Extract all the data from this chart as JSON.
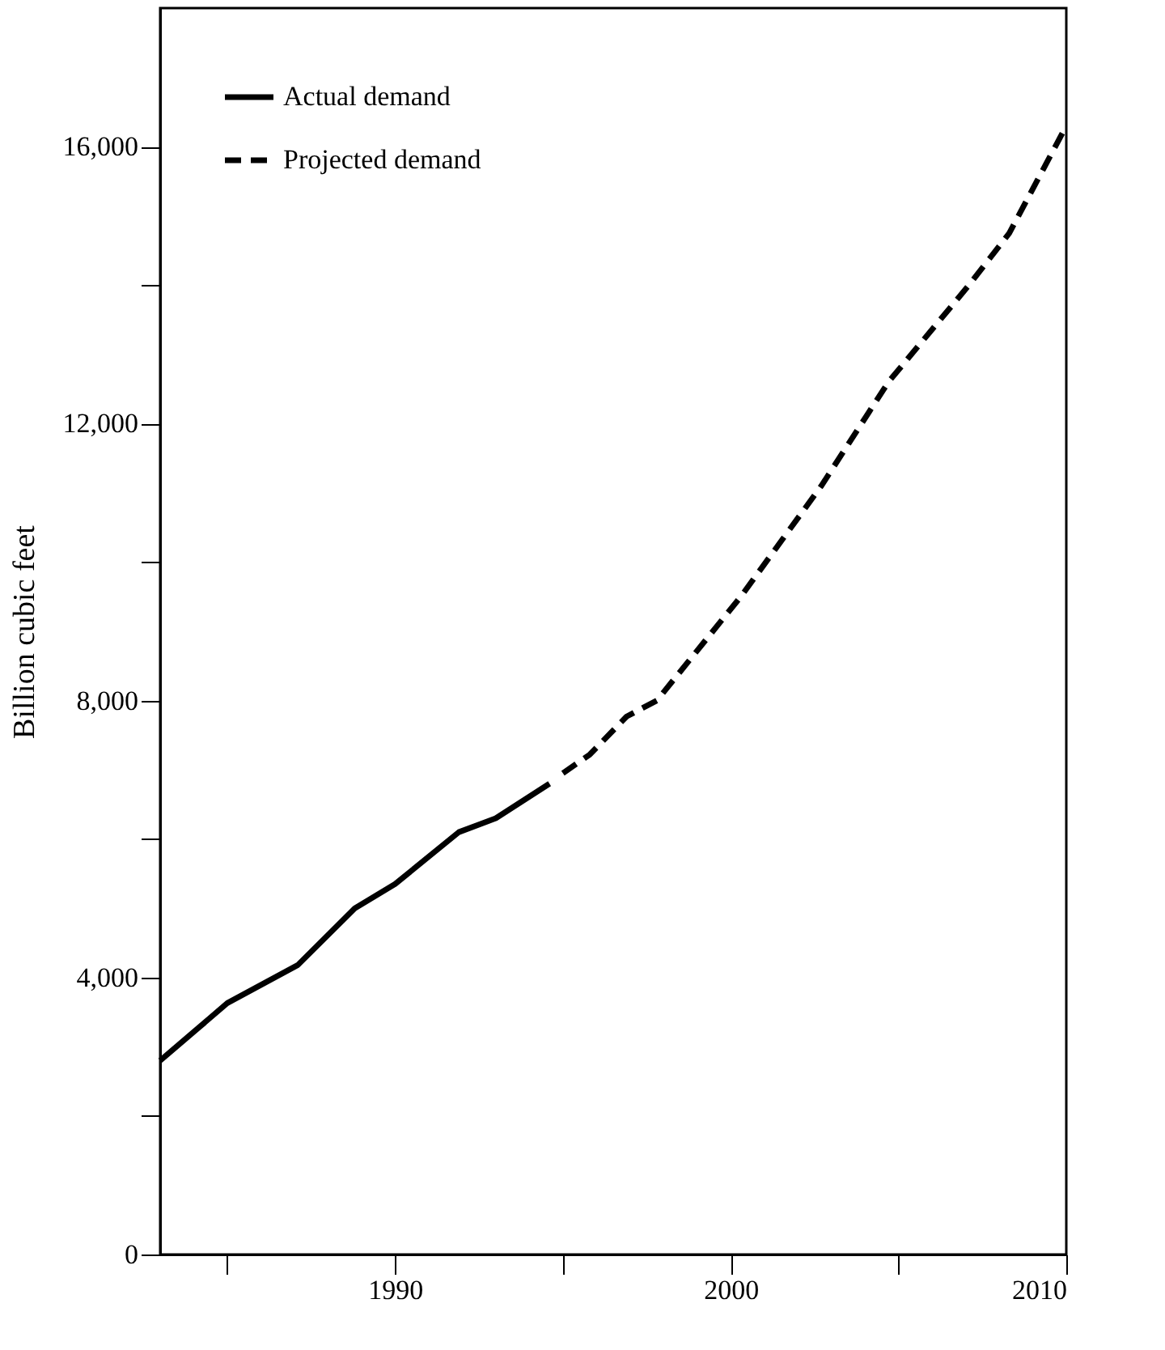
{
  "chart_data": {
    "type": "line",
    "ylabel": "Billion cubic feet",
    "series": [
      {
        "name": "Actual demand",
        "color": "#000000",
        "line_style": "solid",
        "x": [
          1983,
          1985,
          1987.1,
          1988.8,
          1990,
          1991.9,
          1993,
          1994.6
        ],
        "values": [
          2800,
          3630,
          4180,
          5000,
          5350,
          6100,
          6300,
          6800
        ]
      },
      {
        "name": "Projected demand",
        "color": "#000000",
        "line_style": "dashed",
        "x": [
          1995,
          1995.8,
          1996.9,
          1997.8,
          2000.3,
          2002.7,
          2004.7,
          2007.1,
          2008.3,
          2010
        ],
        "values": [
          6950,
          7220,
          7770,
          8000,
          9500,
          11100,
          12600,
          14000,
          14750,
          16300
        ]
      }
    ],
    "xlim": [
      1983,
      2010
    ],
    "xticks": [
      {
        "value": 1985,
        "label": null
      },
      1990,
      {
        "value": 1995,
        "label": null
      },
      2000,
      {
        "value": 2005,
        "label": null
      },
      2010
    ],
    "ylim": [
      0,
      18000
    ],
    "yticks": [
      0,
      {
        "value": 2000,
        "label": null
      },
      {
        "value": 4000,
        "label": "4,000"
      },
      {
        "value": 6000,
        "label": null
      },
      {
        "value": 8000,
        "label": "8,000"
      },
      {
        "value": 10000,
        "label": null
      },
      {
        "value": 12000,
        "label": "12,000"
      },
      {
        "value": 14000,
        "label": null
      },
      {
        "value": 16000,
        "label": "16,000"
      }
    ],
    "grid": false,
    "legend": "top left",
    "marker": "none"
  }
}
